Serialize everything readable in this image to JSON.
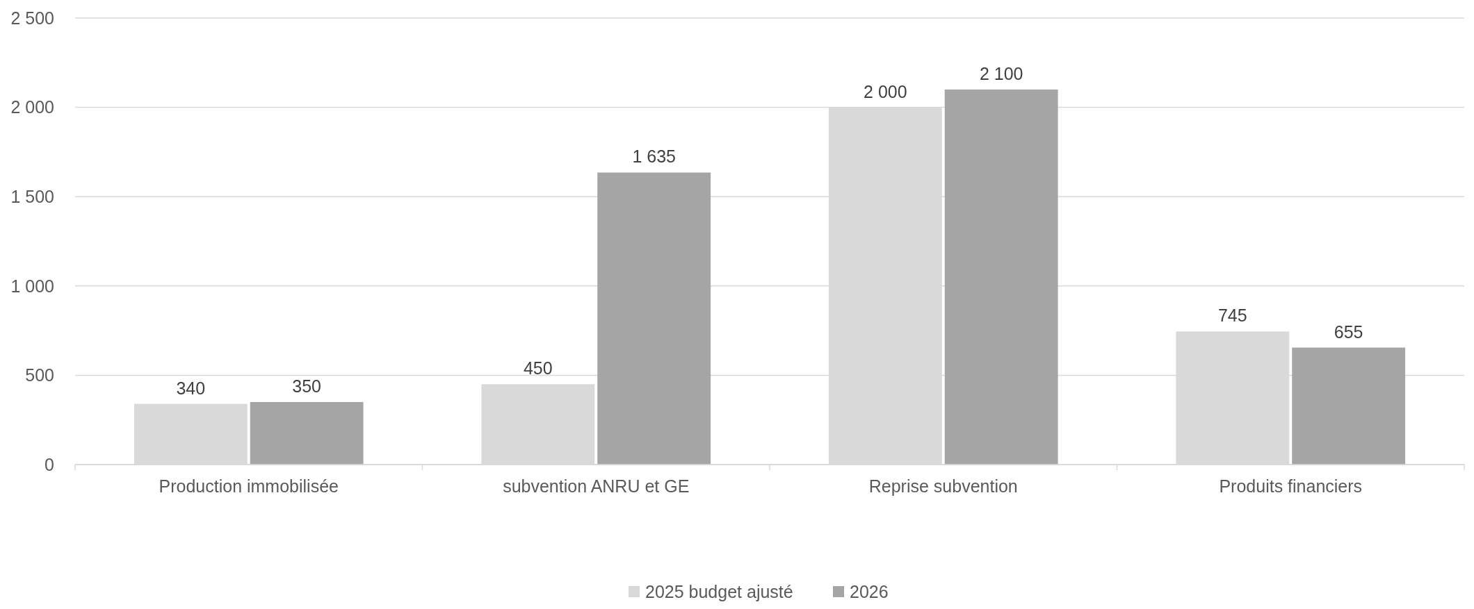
{
  "chart_data": {
    "type": "bar",
    "categories": [
      "Production immobilisée",
      "subvention ANRU et GE",
      "Reprise subvention",
      "Produits financiers"
    ],
    "series": [
      {
        "name": "2025 budget ajusté",
        "color": "#d9d9d9",
        "values": [
          340,
          450,
          2000,
          745
        ],
        "value_labels": [
          "340",
          "450",
          "2 000",
          "745"
        ]
      },
      {
        "name": "2026",
        "color": "#a5a5a5",
        "values": [
          350,
          1635,
          2100,
          655
        ],
        "value_labels": [
          "350",
          "1 635",
          "2 100",
          "655"
        ]
      }
    ],
    "ylim": [
      0,
      2500
    ],
    "yticks": [
      0,
      {
        "value": 500,
        "label": "500"
      },
      {
        "value": 1000,
        "label": "1 000"
      },
      {
        "value": 1500,
        "label": "1 500"
      },
      {
        "value": 2000,
        "label": "2 000"
      },
      {
        "value": 2500,
        "label": "2 500"
      }
    ],
    "grid": "y",
    "legend": "bottom"
  }
}
